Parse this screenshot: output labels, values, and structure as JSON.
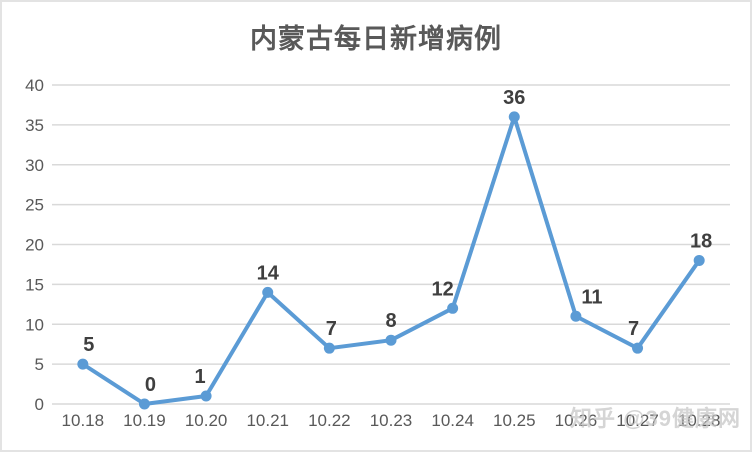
{
  "chart_data": {
    "type": "line",
    "title": "内蒙古每日新增病例",
    "categories": [
      "10.18",
      "10.19",
      "10.20",
      "10.21",
      "10.22",
      "10.23",
      "10.24",
      "10.25",
      "10.26",
      "10.27",
      "10.28"
    ],
    "values": [
      5,
      0,
      1,
      14,
      7,
      8,
      12,
      36,
      11,
      7,
      18
    ],
    "xlabel": "",
    "ylabel": "",
    "ylim": [
      0,
      40
    ],
    "yticks": [
      0,
      5,
      10,
      15,
      20,
      25,
      30,
      35,
      40
    ],
    "grid": "horizontal",
    "legend": "none",
    "data_labels": true
  },
  "watermark": {
    "text": "知乎 @39健康网"
  },
  "colors": {
    "line": "#5b9bd5",
    "marker": "#5b9bd5",
    "grid": "#d9d9d9",
    "axis_text": "#595959",
    "data_label_text": "#3f3f3f",
    "title_text": "#595959",
    "background": "#ffffff",
    "border": "#e3e3e3",
    "watermark_text": "#c6c6c6"
  }
}
